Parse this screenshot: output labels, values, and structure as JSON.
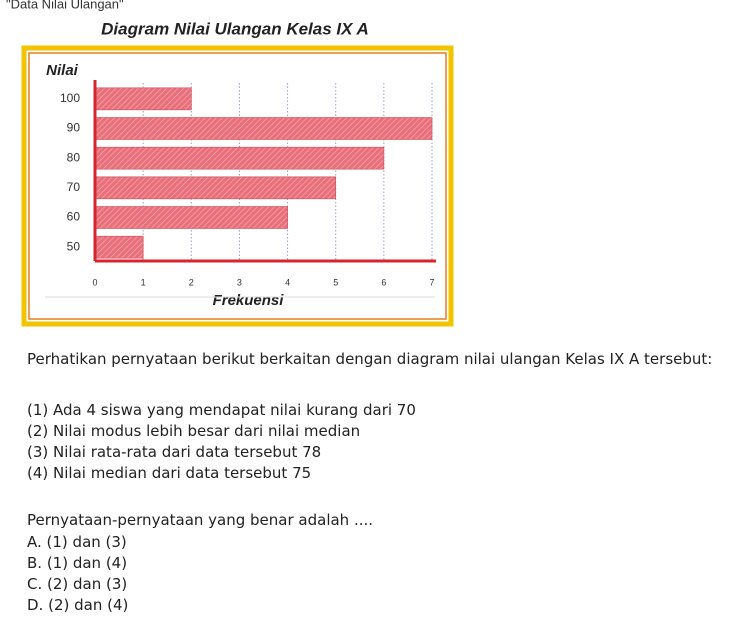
{
  "header": {
    "caption": "\"Data Nilai Ulangan\""
  },
  "chart_data": {
    "type": "hbar",
    "title": "Diagram Nilai Ulangan Kelas IX A",
    "y_label": "Nilai",
    "x_label": "Frekuensi",
    "categories": [
      "100",
      "90",
      "80",
      "70",
      "60",
      "50"
    ],
    "values": [
      2,
      7,
      6,
      5,
      4,
      1
    ],
    "color": "#e9707b",
    "xlim": [
      0,
      7
    ],
    "xticks": [
      0,
      1,
      2,
      3,
      4,
      5,
      6,
      7
    ],
    "grid": true
  },
  "question": {
    "intro": "Perhatikan pernyataan berikut berkaitan dengan diagram nilai ulangan Kelas IX A tersebut:",
    "statements": [
      "(1) Ada 4 siswa yang mendapat nilai kurang dari 70",
      "(2) Nilai modus lebih besar dari nilai median",
      "(3) Nilai rata-rata dari data tersebut 78",
      "(4) Nilai median dari data tersebut 75"
    ],
    "prompt": "Pernyataan-pernyataan yang benar adalah ....",
    "options": [
      "A. (1) dan (3)",
      "B. (1) dan (4)",
      "C. (2) dan (3)",
      "D. (2) dan (4)"
    ]
  }
}
